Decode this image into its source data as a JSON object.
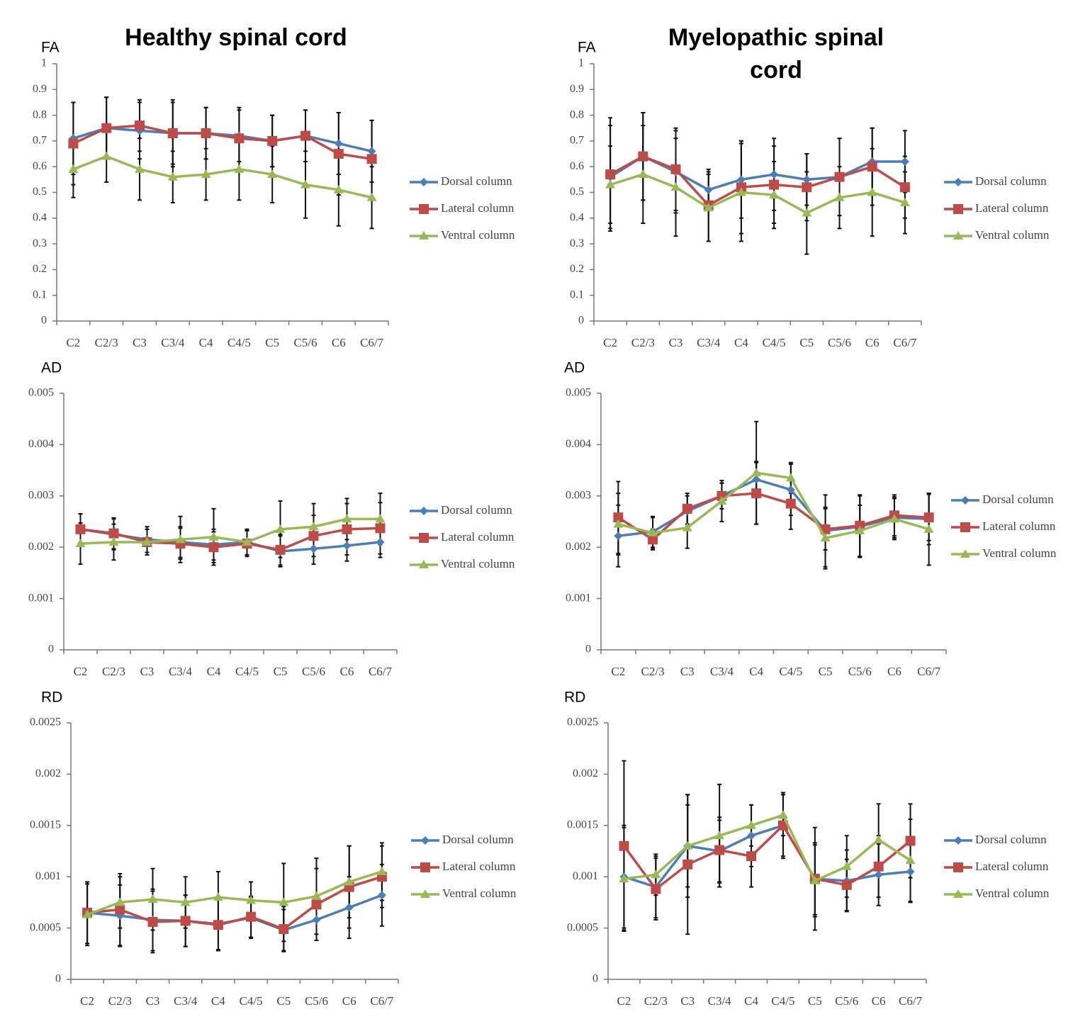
{
  "chart_data": [
    {
      "type": "line",
      "title": "Healthy spinal cord",
      "ylabel": "FA",
      "categories": [
        "C2",
        "C2/3",
        "C3",
        "C3/4",
        "C4",
        "C4/5",
        "C5",
        "C5/6",
        "C6",
        "C6/7"
      ],
      "ylim": [
        0,
        1
      ],
      "yticks": [
        0,
        0.1,
        0.2,
        0.3,
        0.4,
        0.5,
        0.6,
        0.7,
        0.8,
        0.9,
        1
      ],
      "series": [
        {
          "name": "Dorsal column",
          "color": "#4a7ebb",
          "marker": "diamond",
          "values": [
            0.71,
            0.75,
            0.74,
            0.73,
            0.73,
            0.72,
            0.7,
            0.72,
            0.69,
            0.66
          ],
          "errors": [
            0.14,
            0.12,
            0.11,
            0.12,
            0.1,
            0.1,
            0.1,
            0.1,
            0.12,
            0.12
          ]
        },
        {
          "name": "Lateral column",
          "color": "#be4b48",
          "marker": "square",
          "values": [
            0.69,
            0.75,
            0.76,
            0.73,
            0.73,
            0.71,
            0.7,
            0.72,
            0.65,
            0.63
          ],
          "errors": [
            0.16,
            0.12,
            0.1,
            0.13,
            0.1,
            0.12,
            0.1,
            0.1,
            0.16,
            0.15
          ]
        },
        {
          "name": "Ventral column",
          "color": "#98b954",
          "marker": "triangle",
          "values": [
            0.59,
            0.64,
            0.59,
            0.56,
            0.57,
            0.59,
            0.57,
            0.53,
            0.51,
            0.48
          ],
          "errors": [
            0.11,
            0.1,
            0.12,
            0.1,
            0.1,
            0.12,
            0.11,
            0.13,
            0.14,
            0.12
          ]
        }
      ]
    },
    {
      "type": "line",
      "title": "Myelopathic spinal cord",
      "ylabel": "FA",
      "categories": [
        "C2",
        "C2/3",
        "C3",
        "C3/4",
        "C4",
        "C4/5",
        "C5",
        "C5/6",
        "C6",
        "C6/7"
      ],
      "ylim": [
        0,
        1
      ],
      "yticks": [
        0,
        0.1,
        0.2,
        0.3,
        0.4,
        0.5,
        0.6,
        0.7,
        0.8,
        0.9,
        1
      ],
      "series": [
        {
          "name": "Dorsal column",
          "color": "#4a7ebb",
          "marker": "diamond",
          "values": [
            0.56,
            0.64,
            0.58,
            0.51,
            0.55,
            0.57,
            0.55,
            0.56,
            0.62,
            0.62
          ],
          "errors": [
            0.2,
            0.17,
            0.16,
            0.07,
            0.15,
            0.14,
            0.1,
            0.15,
            0.13,
            0.12
          ]
        },
        {
          "name": "Lateral column",
          "color": "#be4b48",
          "marker": "square",
          "values": [
            0.57,
            0.64,
            0.59,
            0.45,
            0.52,
            0.53,
            0.52,
            0.56,
            0.6,
            0.52
          ],
          "errors": [
            0.22,
            0.17,
            0.16,
            0.14,
            0.18,
            0.15,
            0.13,
            0.15,
            0.15,
            0.12
          ]
        },
        {
          "name": "Ventral column",
          "color": "#98b954",
          "marker": "triangle",
          "values": [
            0.53,
            0.57,
            0.52,
            0.44,
            0.5,
            0.49,
            0.42,
            0.48,
            0.5,
            0.46
          ],
          "errors": [
            0.15,
            0.19,
            0.19,
            0.13,
            0.19,
            0.13,
            0.16,
            0.12,
            0.17,
            0.12
          ]
        }
      ]
    },
    {
      "type": "line",
      "ylabel": "AD",
      "categories": [
        "C2",
        "C2/3",
        "C3",
        "C3/4",
        "C4",
        "C4/5",
        "C5",
        "C5/6",
        "C6",
        "C6/7"
      ],
      "ylim": [
        0,
        0.005
      ],
      "yticks": [
        0,
        0.001,
        0.002,
        0.003,
        0.004,
        0.005
      ],
      "series": [
        {
          "name": "Dorsal column",
          "color": "#4a7ebb",
          "marker": "diamond",
          "values": [
            0.00235,
            0.00225,
            0.00215,
            0.0021,
            0.00205,
            0.0021,
            0.00192,
            0.00197,
            0.00203,
            0.0021
          ],
          "errors": [
            0.0003,
            0.0003,
            0.00025,
            0.0003,
            0.0003,
            0.00025,
            0.0003,
            0.0003,
            0.0003,
            0.0003
          ]
        },
        {
          "name": "Lateral column",
          "color": "#be4b48",
          "marker": "square",
          "values": [
            0.00235,
            0.00227,
            0.0021,
            0.00207,
            0.002,
            0.00207,
            0.00195,
            0.00222,
            0.00235,
            0.00237
          ],
          "errors": [
            0.0003,
            0.0003,
            0.00025,
            0.0003,
            0.0003,
            0.00025,
            0.0003,
            0.0004,
            0.0005,
            0.0005
          ]
        },
        {
          "name": "Ventral column",
          "color": "#98b954",
          "marker": "triangle",
          "values": [
            0.00207,
            0.0021,
            0.0021,
            0.00215,
            0.0022,
            0.0021,
            0.00235,
            0.0024,
            0.00255,
            0.00255
          ],
          "errors": [
            0.0004,
            0.00035,
            0.00025,
            0.00045,
            0.00055,
            0.00025,
            0.00055,
            0.00045,
            0.0004,
            0.0005
          ]
        }
      ]
    },
    {
      "type": "line",
      "ylabel": "AD",
      "categories": [
        "C2",
        "C2/3",
        "C3",
        "C3/4",
        "C4",
        "C4/5",
        "C5",
        "C5/6",
        "C6",
        "C6/7"
      ],
      "ylim": [
        0,
        0.005
      ],
      "yticks": [
        0,
        0.001,
        0.002,
        0.003,
        0.004,
        0.005
      ],
      "series": [
        {
          "name": "Dorsal column",
          "color": "#4a7ebb",
          "marker": "diamond",
          "values": [
            0.00222,
            0.0023,
            0.0027,
            0.003,
            0.00332,
            0.00312,
            0.00232,
            0.0024,
            0.00258,
            0.00255
          ],
          "errors": [
            0.0006,
            0.0003,
            0.0003,
            0.00025,
            0.00035,
            0.0005,
            0.0007,
            0.0006,
            0.0004,
            0.0005
          ]
        },
        {
          "name": "Lateral column",
          "color": "#be4b48",
          "marker": "square",
          "values": [
            0.00258,
            0.00215,
            0.00275,
            0.003,
            0.00305,
            0.00285,
            0.00235,
            0.00242,
            0.00262,
            0.00258
          ],
          "errors": [
            0.0007,
            0.0002,
            0.0003,
            0.00025,
            0.0006,
            0.0005,
            0.0004,
            0.0006,
            0.0004,
            0.00045
          ]
        },
        {
          "name": "Ventral column",
          "color": "#98b954",
          "marker": "triangle",
          "values": [
            0.00245,
            0.00228,
            0.00238,
            0.0029,
            0.00345,
            0.00335,
            0.00218,
            0.00232,
            0.00255,
            0.00235
          ],
          "errors": [
            0.0006,
            0.0003,
            0.0004,
            0.0004,
            0.001,
            0.0003,
            0.0006,
            0.0005,
            0.0004,
            0.0007
          ]
        }
      ]
    },
    {
      "type": "line",
      "ylabel": "RD",
      "categories": [
        "C2",
        "C2/3",
        "C3",
        "C3/4",
        "C4",
        "C4/5",
        "C5",
        "C5/6",
        "C6",
        "C6/7"
      ],
      "ylim": [
        0,
        0.0025
      ],
      "yticks": [
        0,
        0.0005,
        0.001,
        0.0015,
        0.002,
        0.0025
      ],
      "series": [
        {
          "name": "Dorsal column",
          "color": "#4a7ebb",
          "marker": "diamond",
          "values": [
            0.00065,
            0.00062,
            0.00058,
            0.00057,
            0.00054,
            0.0006,
            0.00048,
            0.00058,
            0.0007,
            0.00082
          ],
          "errors": [
            0.0003,
            0.0003,
            0.0003,
            0.00025,
            0.00025,
            0.0002,
            0.0002,
            0.0002,
            0.0003,
            0.0003
          ]
        },
        {
          "name": "Lateral column",
          "color": "#be4b48",
          "marker": "square",
          "values": [
            0.00065,
            0.00068,
            0.00056,
            0.00057,
            0.00053,
            0.00061,
            0.00049,
            0.00073,
            0.0009,
            0.001
          ],
          "errors": [
            0.0003,
            0.00035,
            0.0003,
            0.00025,
            0.00025,
            0.0002,
            0.00022,
            0.00035,
            0.0004,
            0.0003
          ]
        },
        {
          "name": "Ventral column",
          "color": "#98b954",
          "marker": "triangle",
          "values": [
            0.00063,
            0.00075,
            0.00078,
            0.00075,
            0.0008,
            0.00077,
            0.00075,
            0.00081,
            0.00095,
            0.00105
          ],
          "errors": [
            0.0003,
            0.00025,
            0.0003,
            0.00025,
            0.00025,
            0.00018,
            0.00038,
            0.00037,
            0.00035,
            0.00028
          ]
        }
      ]
    },
    {
      "type": "line",
      "ylabel": "RD",
      "categories": [
        "C2",
        "C2/3",
        "C3",
        "C3/4",
        "C4",
        "C4/5",
        "C5",
        "C5/6",
        "C6",
        "C6/7"
      ],
      "ylim": [
        0,
        0.0025
      ],
      "yticks": [
        0,
        0.0005,
        0.001,
        0.0015,
        0.002,
        0.0025
      ],
      "series": [
        {
          "name": "Dorsal column",
          "color": "#4a7ebb",
          "marker": "diamond",
          "values": [
            0.001,
            0.0009,
            0.0013,
            0.00125,
            0.0014,
            0.0015,
            0.00098,
            0.00096,
            0.00102,
            0.00105
          ],
          "errors": [
            0.0005,
            0.0003,
            0.0004,
            0.0003,
            0.0003,
            0.0003,
            0.00035,
            0.0003,
            0.0003,
            0.0003
          ]
        },
        {
          "name": "Lateral column",
          "color": "#be4b48",
          "marker": "square",
          "values": [
            0.0013,
            0.00088,
            0.00112,
            0.00126,
            0.0012,
            0.0015,
            0.00098,
            0.00092,
            0.0011,
            0.00135
          ],
          "errors": [
            0.00083,
            0.0003,
            0.00068,
            0.00032,
            0.0003,
            0.00032,
            0.0005,
            0.00025,
            0.0003,
            0.00036
          ]
        },
        {
          "name": "Ventral column",
          "color": "#98b954",
          "marker": "triangle",
          "values": [
            0.00098,
            0.00102,
            0.0013,
            0.0014,
            0.0015,
            0.0016,
            0.00096,
            0.0011,
            0.00136,
            0.00116
          ],
          "errors": [
            0.0005,
            0.0002,
            0.0005,
            0.0005,
            0.0002,
            0.0002,
            0.00035,
            0.0003,
            0.00035,
            0.0004
          ]
        }
      ]
    }
  ]
}
